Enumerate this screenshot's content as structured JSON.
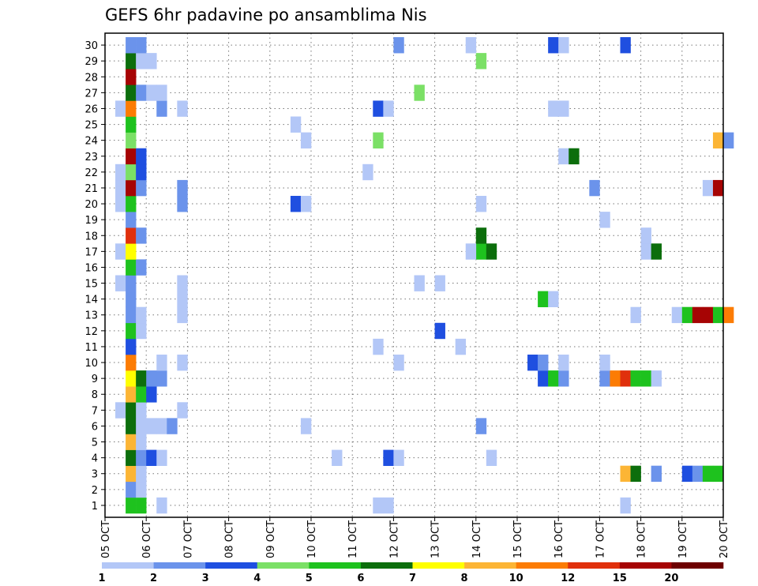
{
  "chart_data": {
    "type": "heatmap",
    "title": "GEFS 6hr padavine po ansamblima Nis",
    "x_tick_labels": [
      "05 OCT",
      "06 OCT",
      "07 OCT",
      "08 OCT",
      "09 OCT",
      "10 OCT",
      "11 OCT",
      "12 OCT",
      "13 OCT",
      "14 OCT",
      "15 OCT",
      "16 OCT",
      "17 OCT",
      "18 OCT",
      "19 OCT",
      "20 OCT"
    ],
    "y_tick_labels": [
      "1",
      "2",
      "3",
      "4",
      "5",
      "6",
      "7",
      "8",
      "9",
      "10",
      "11",
      "12",
      "13",
      "14",
      "15",
      "16",
      "17",
      "18",
      "19",
      "20",
      "21",
      "22",
      "23",
      "24",
      "25",
      "26",
      "27",
      "28",
      "29",
      "30"
    ],
    "xlim": [
      "05 OCT 00Z",
      "20 OCT 00Z"
    ],
    "ylim": [
      1,
      30
    ],
    "x_step": "6hr",
    "grid": true,
    "colorbar": {
      "position": "bottom",
      "tick_labels": [
        "1",
        "2",
        "3",
        "4",
        "5",
        "6",
        "7",
        "8",
        "10",
        "12",
        "15",
        "20"
      ],
      "colors": [
        "#b3c7f7",
        "#6b93eb",
        "#1f4fe0",
        "#7be066",
        "#1ec21e",
        "#0c6e0c",
        "#ffff00",
        "#fcb535",
        "#fc7c04",
        "#e0300c",
        "#a60404",
        "#6e0000"
      ]
    },
    "cells": [
      {
        "member": 1,
        "day": 0,
        "step": 2,
        "level": 5
      },
      {
        "member": 1,
        "day": 0,
        "step": 3,
        "level": 5
      },
      {
        "member": 1,
        "day": 1,
        "step": 1,
        "level": 1
      },
      {
        "member": 1,
        "day": 6,
        "step": 2,
        "level": 1
      },
      {
        "member": 1,
        "day": 6,
        "step": 3,
        "level": 1
      },
      {
        "member": 1,
        "day": 12,
        "step": 2,
        "level": 1
      },
      {
        "member": 2,
        "day": 0,
        "step": 2,
        "level": 2
      },
      {
        "member": 2,
        "day": 0,
        "step": 3,
        "level": 1
      },
      {
        "member": 3,
        "day": 0,
        "step": 2,
        "level": 8
      },
      {
        "member": 3,
        "day": 0,
        "step": 3,
        "level": 1
      },
      {
        "member": 3,
        "day": 12,
        "step": 2,
        "level": 8
      },
      {
        "member": 3,
        "day": 12,
        "step": 3,
        "level": 6
      },
      {
        "member": 3,
        "day": 13,
        "step": 1,
        "level": 2
      },
      {
        "member": 3,
        "day": 14,
        "step": 0,
        "level": 3
      },
      {
        "member": 3,
        "day": 14,
        "step": 1,
        "level": 2
      },
      {
        "member": 3,
        "day": 14,
        "step": 2,
        "level": 5
      },
      {
        "member": 3,
        "day": 14,
        "step": 3,
        "level": 5
      },
      {
        "member": 4,
        "day": 0,
        "step": 2,
        "level": 6
      },
      {
        "member": 4,
        "day": 0,
        "step": 3,
        "level": 2
      },
      {
        "member": 4,
        "day": 1,
        "step": 0,
        "level": 3
      },
      {
        "member": 4,
        "day": 1,
        "step": 1,
        "level": 1
      },
      {
        "member": 4,
        "day": 5,
        "step": 2,
        "level": 1
      },
      {
        "member": 4,
        "day": 6,
        "step": 3,
        "level": 3
      },
      {
        "member": 4,
        "day": 7,
        "step": 0,
        "level": 1
      },
      {
        "member": 4,
        "day": 9,
        "step": 1,
        "level": 1
      },
      {
        "member": 5,
        "day": 0,
        "step": 2,
        "level": 8
      },
      {
        "member": 5,
        "day": 0,
        "step": 3,
        "level": 1
      },
      {
        "member": 6,
        "day": 0,
        "step": 2,
        "level": 6
      },
      {
        "member": 6,
        "day": 0,
        "step": 3,
        "level": 1
      },
      {
        "member": 6,
        "day": 1,
        "step": 0,
        "level": 1
      },
      {
        "member": 6,
        "day": 1,
        "step": 1,
        "level": 1
      },
      {
        "member": 6,
        "day": 1,
        "step": 2,
        "level": 2
      },
      {
        "member": 6,
        "day": 4,
        "step": 3,
        "level": 1
      },
      {
        "member": 6,
        "day": 9,
        "step": 0,
        "level": 2
      },
      {
        "member": 7,
        "day": 0,
        "step": 1,
        "level": 1
      },
      {
        "member": 7,
        "day": 0,
        "step": 2,
        "level": 6
      },
      {
        "member": 7,
        "day": 0,
        "step": 3,
        "level": 1
      },
      {
        "member": 7,
        "day": 1,
        "step": 3,
        "level": 1
      },
      {
        "member": 8,
        "day": 0,
        "step": 2,
        "level": 8
      },
      {
        "member": 8,
        "day": 0,
        "step": 3,
        "level": 5
      },
      {
        "member": 8,
        "day": 1,
        "step": 0,
        "level": 3
      },
      {
        "member": 9,
        "day": 0,
        "step": 2,
        "level": 7
      },
      {
        "member": 9,
        "day": 0,
        "step": 3,
        "level": 6
      },
      {
        "member": 9,
        "day": 1,
        "step": 0,
        "level": 2
      },
      {
        "member": 9,
        "day": 1,
        "step": 1,
        "level": 2
      },
      {
        "member": 9,
        "day": 10,
        "step": 2,
        "level": 3
      },
      {
        "member": 9,
        "day": 10,
        "step": 3,
        "level": 5
      },
      {
        "member": 9,
        "day": 11,
        "step": 0,
        "level": 2
      },
      {
        "member": 9,
        "day": 12,
        "step": 0,
        "level": 2
      },
      {
        "member": 9,
        "day": 12,
        "step": 1,
        "level": 9
      },
      {
        "member": 9,
        "day": 12,
        "step": 2,
        "level": 10
      },
      {
        "member": 9,
        "day": 12,
        "step": 3,
        "level": 5
      },
      {
        "member": 9,
        "day": 13,
        "step": 0,
        "level": 5
      },
      {
        "member": 9,
        "day": 13,
        "step": 1,
        "level": 1
      },
      {
        "member": 10,
        "day": 0,
        "step": 2,
        "level": 9
      },
      {
        "member": 10,
        "day": 1,
        "step": 1,
        "level": 1
      },
      {
        "member": 10,
        "day": 1,
        "step": 3,
        "level": 1
      },
      {
        "member": 10,
        "day": 7,
        "step": 0,
        "level": 1
      },
      {
        "member": 10,
        "day": 10,
        "step": 1,
        "level": 3
      },
      {
        "member": 10,
        "day": 10,
        "step": 2,
        "level": 2
      },
      {
        "member": 10,
        "day": 11,
        "step": 0,
        "level": 1
      },
      {
        "member": 10,
        "day": 12,
        "step": 0,
        "level": 1
      },
      {
        "member": 11,
        "day": 0,
        "step": 2,
        "level": 3
      },
      {
        "member": 11,
        "day": 6,
        "step": 2,
        "level": 1
      },
      {
        "member": 11,
        "day": 8,
        "step": 2,
        "level": 1
      },
      {
        "member": 12,
        "day": 0,
        "step": 2,
        "level": 5
      },
      {
        "member": 12,
        "day": 0,
        "step": 3,
        "level": 1
      },
      {
        "member": 12,
        "day": 8,
        "step": 0,
        "level": 3
      },
      {
        "member": 13,
        "day": 0,
        "step": 2,
        "level": 2
      },
      {
        "member": 13,
        "day": 0,
        "step": 3,
        "level": 1
      },
      {
        "member": 13,
        "day": 1,
        "step": 3,
        "level": 1
      },
      {
        "member": 13,
        "day": 12,
        "step": 3,
        "level": 1
      },
      {
        "member": 13,
        "day": 13,
        "step": 3,
        "level": 1
      },
      {
        "member": 13,
        "day": 14,
        "step": 0,
        "level": 5
      },
      {
        "member": 13,
        "day": 14,
        "step": 1,
        "level": 11
      },
      {
        "member": 13,
        "day": 14,
        "step": 2,
        "level": 11
      },
      {
        "member": 13,
        "day": 14,
        "step": 3,
        "level": 5
      },
      {
        "member": 13,
        "day": 15,
        "step": 0,
        "level": 9
      },
      {
        "member": 14,
        "day": 0,
        "step": 2,
        "level": 2
      },
      {
        "member": 14,
        "day": 1,
        "step": 3,
        "level": 1
      },
      {
        "member": 14,
        "day": 10,
        "step": 2,
        "level": 5
      },
      {
        "member": 14,
        "day": 10,
        "step": 3,
        "level": 1
      },
      {
        "member": 15,
        "day": 0,
        "step": 1,
        "level": 1
      },
      {
        "member": 15,
        "day": 0,
        "step": 2,
        "level": 2
      },
      {
        "member": 15,
        "day": 1,
        "step": 3,
        "level": 1
      },
      {
        "member": 15,
        "day": 7,
        "step": 2,
        "level": 1
      },
      {
        "member": 15,
        "day": 8,
        "step": 0,
        "level": 1
      },
      {
        "member": 16,
        "day": 0,
        "step": 2,
        "level": 5
      },
      {
        "member": 16,
        "day": 0,
        "step": 3,
        "level": 2
      },
      {
        "member": 17,
        "day": 0,
        "step": 1,
        "level": 1
      },
      {
        "member": 17,
        "day": 0,
        "step": 2,
        "level": 7
      },
      {
        "member": 17,
        "day": 9,
        "step": 0,
        "level": 5
      },
      {
        "member": 17,
        "day": 9,
        "step": 1,
        "level": 6
      },
      {
        "member": 17,
        "day": 8,
        "step": 3,
        "level": 1
      },
      {
        "member": 17,
        "day": 13,
        "step": 0,
        "level": 1
      },
      {
        "member": 17,
        "day": 13,
        "step": 1,
        "level": 6
      },
      {
        "member": 18,
        "day": 0,
        "step": 2,
        "level": 10
      },
      {
        "member": 18,
        "day": 0,
        "step": 3,
        "level": 2
      },
      {
        "member": 18,
        "day": 9,
        "step": 0,
        "level": 6
      },
      {
        "member": 18,
        "day": 13,
        "step": 0,
        "level": 1
      },
      {
        "member": 19,
        "day": 0,
        "step": 2,
        "level": 2
      },
      {
        "member": 19,
        "day": 12,
        "step": 0,
        "level": 1
      },
      {
        "member": 20,
        "day": 0,
        "step": 1,
        "level": 1
      },
      {
        "member": 20,
        "day": 0,
        "step": 2,
        "level": 5
      },
      {
        "member": 20,
        "day": 1,
        "step": 3,
        "level": 2
      },
      {
        "member": 20,
        "day": 4,
        "step": 2,
        "level": 3
      },
      {
        "member": 20,
        "day": 4,
        "step": 3,
        "level": 1
      },
      {
        "member": 20,
        "day": 9,
        "step": 0,
        "level": 1
      },
      {
        "member": 21,
        "day": 0,
        "step": 1,
        "level": 1
      },
      {
        "member": 21,
        "day": 0,
        "step": 2,
        "level": 11
      },
      {
        "member": 21,
        "day": 0,
        "step": 3,
        "level": 2
      },
      {
        "member": 21,
        "day": 1,
        "step": 3,
        "level": 2
      },
      {
        "member": 21,
        "day": 11,
        "step": 3,
        "level": 2
      },
      {
        "member": 21,
        "day": 14,
        "step": 2,
        "level": 1
      },
      {
        "member": 21,
        "day": 14,
        "step": 3,
        "level": 11
      },
      {
        "member": 22,
        "day": 0,
        "step": 1,
        "level": 1
      },
      {
        "member": 22,
        "day": 0,
        "step": 2,
        "level": 4
      },
      {
        "member": 22,
        "day": 0,
        "step": 3,
        "level": 3
      },
      {
        "member": 22,
        "day": 6,
        "step": 1,
        "level": 1
      },
      {
        "member": 23,
        "day": 0,
        "step": 2,
        "level": 11
      },
      {
        "member": 23,
        "day": 0,
        "step": 3,
        "level": 3
      },
      {
        "member": 23,
        "day": 11,
        "step": 0,
        "level": 1
      },
      {
        "member": 23,
        "day": 11,
        "step": 1,
        "level": 6
      },
      {
        "member": 24,
        "day": 0,
        "step": 2,
        "level": 4
      },
      {
        "member": 24,
        "day": 4,
        "step": 3,
        "level": 1
      },
      {
        "member": 24,
        "day": 6,
        "step": 2,
        "level": 4
      },
      {
        "member": 24,
        "day": 14,
        "step": 3,
        "level": 8
      },
      {
        "member": 24,
        "day": 15,
        "step": 0,
        "level": 2
      },
      {
        "member": 25,
        "day": 0,
        "step": 2,
        "level": 5
      },
      {
        "member": 25,
        "day": 4,
        "step": 2,
        "level": 1
      },
      {
        "member": 26,
        "day": 0,
        "step": 1,
        "level": 1
      },
      {
        "member": 26,
        "day": 0,
        "step": 2,
        "level": 9
      },
      {
        "member": 26,
        "day": 1,
        "step": 1,
        "level": 2
      },
      {
        "member": 26,
        "day": 1,
        "step": 3,
        "level": 1
      },
      {
        "member": 26,
        "day": 6,
        "step": 2,
        "level": 3
      },
      {
        "member": 26,
        "day": 6,
        "step": 3,
        "level": 1
      },
      {
        "member": 26,
        "day": 10,
        "step": 3,
        "level": 1
      },
      {
        "member": 26,
        "day": 11,
        "step": 0,
        "level": 1
      },
      {
        "member": 27,
        "day": 0,
        "step": 2,
        "level": 6
      },
      {
        "member": 27,
        "day": 0,
        "step": 3,
        "level": 2
      },
      {
        "member": 27,
        "day": 1,
        "step": 0,
        "level": 1
      },
      {
        "member": 27,
        "day": 1,
        "step": 1,
        "level": 1
      },
      {
        "member": 27,
        "day": 7,
        "step": 2,
        "level": 4
      },
      {
        "member": 28,
        "day": 0,
        "step": 2,
        "level": 11
      },
      {
        "member": 29,
        "day": 0,
        "step": 2,
        "level": 6
      },
      {
        "member": 29,
        "day": 0,
        "step": 3,
        "level": 1
      },
      {
        "member": 29,
        "day": 1,
        "step": 0,
        "level": 1
      },
      {
        "member": 29,
        "day": 9,
        "step": 0,
        "level": 4
      },
      {
        "member": 30,
        "day": 0,
        "step": 2,
        "level": 2
      },
      {
        "member": 30,
        "day": 0,
        "step": 3,
        "level": 2
      },
      {
        "member": 30,
        "day": 7,
        "step": 0,
        "level": 2
      },
      {
        "member": 30,
        "day": 8,
        "step": 3,
        "level": 1
      },
      {
        "member": 30,
        "day": 10,
        "step": 3,
        "level": 3
      },
      {
        "member": 30,
        "day": 11,
        "step": 0,
        "level": 1
      },
      {
        "member": 30,
        "day": 12,
        "step": 2,
        "level": 3
      }
    ]
  }
}
